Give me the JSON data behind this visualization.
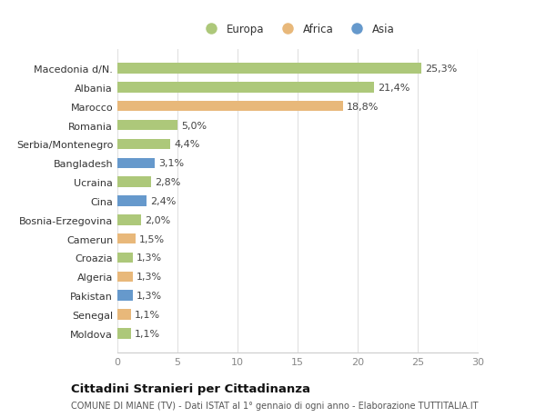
{
  "countries": [
    "Macedonia d/N.",
    "Albania",
    "Marocco",
    "Romania",
    "Serbia/Montenegro",
    "Bangladesh",
    "Ucraina",
    "Cina",
    "Bosnia-Erzegovina",
    "Camerun",
    "Croazia",
    "Algeria",
    "Pakistan",
    "Senegal",
    "Moldova"
  ],
  "values": [
    25.3,
    21.4,
    18.8,
    5.0,
    4.4,
    3.1,
    2.8,
    2.4,
    2.0,
    1.5,
    1.3,
    1.3,
    1.3,
    1.1,
    1.1
  ],
  "labels": [
    "25,3%",
    "21,4%",
    "18,8%",
    "5,0%",
    "4,4%",
    "3,1%",
    "2,8%",
    "2,4%",
    "2,0%",
    "1,5%",
    "1,3%",
    "1,3%",
    "1,3%",
    "1,1%",
    "1,1%"
  ],
  "continents": [
    "Europa",
    "Europa",
    "Africa",
    "Europa",
    "Europa",
    "Asia",
    "Europa",
    "Asia",
    "Europa",
    "Africa",
    "Europa",
    "Africa",
    "Asia",
    "Africa",
    "Europa"
  ],
  "colors": {
    "Europa": "#adc87a",
    "Africa": "#e8b87a",
    "Asia": "#6699cc"
  },
  "xlim": [
    0,
    30
  ],
  "xticks": [
    0,
    5,
    10,
    15,
    20,
    25,
    30
  ],
  "title": "Cittadini Stranieri per Cittadinanza",
  "subtitle": "COMUNE DI MIANE (TV) - Dati ISTAT al 1° gennaio di ogni anno - Elaborazione TUTTITALIA.IT",
  "background_color": "#ffffff",
  "grid_color": "#e0e0e0",
  "bar_height": 0.55,
  "label_fontsize": 8.0,
  "ytick_fontsize": 8.0,
  "xtick_fontsize": 8.0,
  "legend_fontsize": 8.5,
  "title_fontsize": 9.5,
  "subtitle_fontsize": 7.0
}
